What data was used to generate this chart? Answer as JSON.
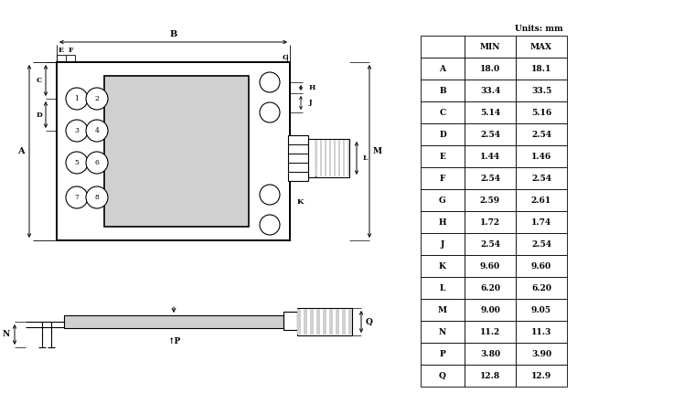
{
  "table_header": [
    "",
    "MIN",
    "MAX"
  ],
  "table_rows": [
    [
      "A",
      "18.0",
      "18.1"
    ],
    [
      "B",
      "33.4",
      "33.5"
    ],
    [
      "C",
      "5.14",
      "5.16"
    ],
    [
      "D",
      "2.54",
      "2.54"
    ],
    [
      "E",
      "1.44",
      "1.46"
    ],
    [
      "F",
      "2.54",
      "2.54"
    ],
    [
      "G",
      "2.59",
      "2.61"
    ],
    [
      "H",
      "1.72",
      "1.74"
    ],
    [
      "J",
      "2.54",
      "2.54"
    ],
    [
      "K",
      "9.60",
      "9.60"
    ],
    [
      "L",
      "6.20",
      "6.20"
    ],
    [
      "M",
      "9.00",
      "9.05"
    ],
    [
      "N",
      "11.2",
      "11.3"
    ],
    [
      "P",
      "3.80",
      "3.90"
    ],
    [
      "Q",
      "12.8",
      "12.9"
    ]
  ],
  "units_text": "Units: mm",
  "line_color": "#000000",
  "gray_fill": "#d0d0d0"
}
